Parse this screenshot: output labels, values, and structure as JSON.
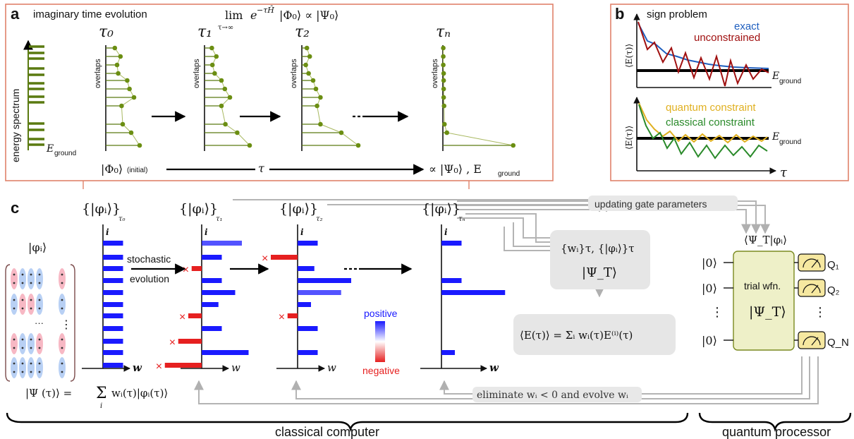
{
  "panel_a": {
    "label": "a",
    "title": "imaginary time evolution",
    "equation": "lim e^(−τĤ)|Φ₀⟩ ∝ |Ψ₀⟩",
    "equation_main": "lim",
    "equation_sub": "τ→∞",
    "equation_exp": "e",
    "equation_exp_sup": "−τĤ",
    "equation_rest": "|Φ₀⟩ ∝ |Ψ₀⟩",
    "spectrum_label": "energy spectrum",
    "eground": "E",
    "eground_sub": "ground",
    "tau_labels": [
      "τ₀",
      "τ₁",
      "τ₂",
      "τₙ"
    ],
    "overlaps_label": "overlaps",
    "initial_state": "|Φ₀⟩",
    "initial_note": "(initial)",
    "tau_arrow": "τ",
    "final_state": "∝ |Ψ₀⟩ , E",
    "final_sub": "ground",
    "overlap_values": [
      [
        0.16,
        0.26,
        0.2,
        0.22,
        0.38,
        0.42,
        0.5,
        0.28,
        0.3,
        0.45,
        0.6
      ],
      [
        0.13,
        0.21,
        0.14,
        0.18,
        0.3,
        0.36,
        0.45,
        0.3,
        0.37,
        0.58,
        0.8
      ],
      [
        0.09,
        0.14,
        0.07,
        0.12,
        0.2,
        0.25,
        0.33,
        0.27,
        0.33,
        0.7,
        1.0
      ],
      [
        0.01,
        0.01,
        0.01,
        0.02,
        0.02,
        0.02,
        0.02,
        0.03,
        0.04,
        0.1,
        1.75
      ]
    ]
  },
  "panel_b": {
    "label": "b",
    "title": "sign problem",
    "legend_top": [
      {
        "name": "exact",
        "color": "#1f5fbf"
      },
      {
        "name": "unconstrained",
        "color": "#a01010"
      }
    ],
    "legend_bottom": [
      {
        "name": "quantum constraint",
        "color": "#e0b020"
      },
      {
        "name": "classical constraint",
        "color": "#2a8a2a"
      }
    ],
    "ylabel": "⟨E(τ)⟩",
    "xlabel": "τ",
    "eground": "E",
    "eground_sub": "ground"
  },
  "panel_c": {
    "label": "c",
    "set_labels": [
      "{|φᵢ⟩}τ₀",
      "{|φᵢ⟩}τ₁",
      "{|φᵢ⟩}τ₂",
      "{|φᵢ⟩}τₙ"
    ],
    "set_main": "{|φᵢ⟩}",
    "set_subs": [
      "τ₀",
      "τ₁",
      "τ₂",
      "τₙ"
    ],
    "phi_label": "|φᵢ⟩",
    "axis_i": "i",
    "axis_w": "w",
    "stochastic": "stochastic",
    "evolution": "evolution",
    "ellipsis": "···",
    "psi_equation": "|Ψ(τ)⟩ = Σᵢ wᵢ(τ)|φᵢ(τ)⟩",
    "psi_lhs": "|Ψ (τ)⟩ = ",
    "psi_sum": "Σ",
    "psi_sum_sub": "i",
    "psi_rhs": "wᵢ(τ)|φᵢ(τ)⟩",
    "legend_positive": "positive",
    "legend_negative": "negative",
    "box_line1": "{wᵢ}τ, {|φᵢ⟩}τ",
    "box_line2": "|Ψ_T⟩",
    "energy_equation": "⟨E(τ)⟩ = Σᵢ wᵢ(τ)E⁽ⁱ⁾(τ)",
    "update_label": "updating gate parameters",
    "eliminate_label": "eliminate wᵢ < 0 and evolve wᵢ",
    "classical_label": "classical computer",
    "quantum_label": "quantum processor",
    "qubit_state": "|0⟩",
    "vdots": "⋮",
    "trial_label": "trial wfn.",
    "trial_state": "|Ψ_T⟩",
    "overlap_label": "⟨Ψ_T|φᵢ⟩",
    "measure_labels": [
      "Q₁",
      "Q₂",
      "Q_N"
    ],
    "weights": [
      [
        0.3,
        0.3,
        0.3,
        0.3,
        0.3,
        0.3,
        0.3,
        0.3,
        0.3,
        0.3,
        0.3
      ],
      [
        0.6,
        0.3,
        -0.15,
        0.3,
        0.5,
        0.25,
        -0.2,
        0.3,
        -0.35,
        0.7,
        -0.55
      ],
      [
        0.3,
        -0.4,
        0.25,
        0.8,
        0.65,
        0.2,
        -0.15,
        0.3,
        0.0,
        0.3,
        0.0
      ],
      [
        0.3,
        0.0,
        0.0,
        0.3,
        0.95,
        0.0,
        0.0,
        0.0,
        0.0,
        0.2,
        0.0
      ]
    ]
  },
  "colors": {
    "olive": "#5a7a10",
    "dot": "#6b8e12",
    "panel_border": "#e0826a",
    "blue": "#1a1aff",
    "red": "#e62020",
    "gray_arrow": "#b0b0b0",
    "trial_fill": "#eef0c8"
  }
}
